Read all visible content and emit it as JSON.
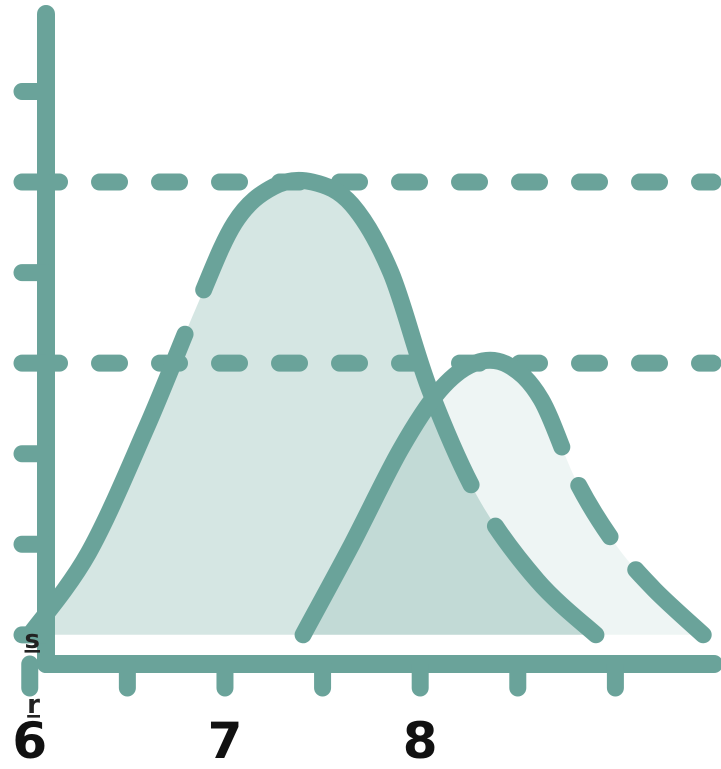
{
  "theme": {
    "stroke": "#6aa39a",
    "fill_main": "#d5e6e3",
    "fill_main_shadow": "#c7ddd9",
    "fill_secondary": "#eef5f4",
    "fill_overlap": "#c2dad6",
    "text": "#111111"
  },
  "cut_labels": [
    "s",
    "r"
  ],
  "chart_data": {
    "type": "area",
    "title": "",
    "xlabel": "",
    "ylabel": "",
    "xlim": [
      5.95,
      9.5
    ],
    "ylim": [
      0,
      7.2
    ],
    "x_ticks": [
      6,
      6.5,
      7,
      7.5,
      8,
      8.5,
      9
    ],
    "x_tick_labels": [
      {
        "x": 6,
        "label": "6"
      },
      {
        "x": 7,
        "label": "7"
      },
      {
        "x": 8,
        "label": "8"
      }
    ],
    "y_ticks": [
      0.3,
      1.3,
      2.3,
      3.3,
      4.3,
      5.3,
      6.3
    ],
    "reference_lines_y": [
      3.3,
      5.3
    ],
    "grid": false,
    "legend": "none",
    "series": [
      {
        "points": [
          [
            6.0,
            0.3
          ],
          [
            6.3,
            1.2
          ],
          [
            6.6,
            2.6
          ],
          [
            6.85,
            3.9
          ],
          [
            7.05,
            4.85
          ],
          [
            7.25,
            5.25
          ],
          [
            7.45,
            5.3
          ],
          [
            7.65,
            5.05
          ],
          [
            7.85,
            4.3
          ],
          [
            8.05,
            3.0
          ],
          [
            8.3,
            1.8
          ],
          [
            8.6,
            0.9
          ],
          [
            8.9,
            0.3
          ]
        ]
      },
      {
        "points": [
          [
            7.4,
            0.3
          ],
          [
            7.65,
            1.3
          ],
          [
            7.9,
            2.35
          ],
          [
            8.1,
            3.0
          ],
          [
            8.28,
            3.3
          ],
          [
            8.45,
            3.28
          ],
          [
            8.62,
            2.9
          ],
          [
            8.8,
            2.0
          ],
          [
            9.0,
            1.3
          ],
          [
            9.2,
            0.8
          ],
          [
            9.45,
            0.3
          ]
        ]
      }
    ]
  }
}
